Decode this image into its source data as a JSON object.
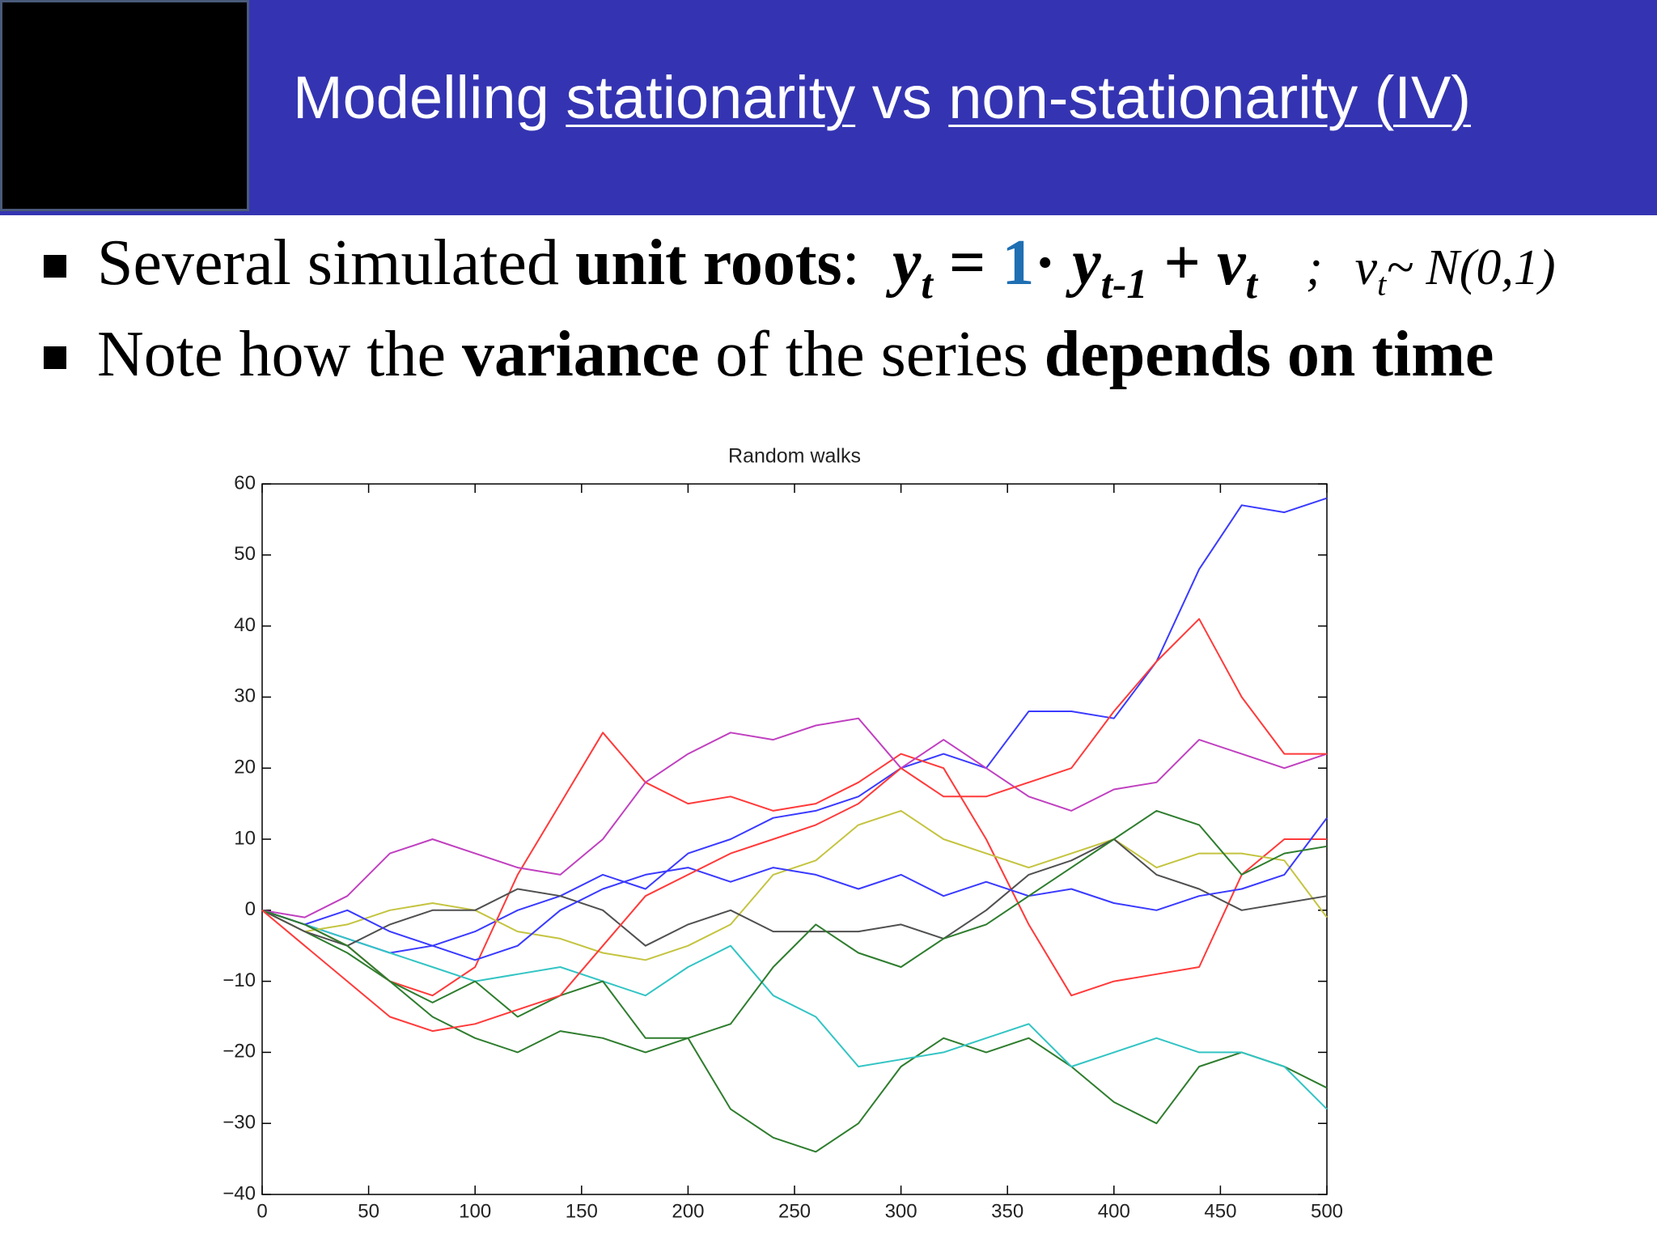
{
  "header": {
    "title": {
      "lead": "Modelling",
      "first": "stationarity",
      "mid": "vs",
      "second": "non-stationarity (IV)"
    }
  },
  "bullets": [
    {
      "segments": [
        {
          "text": "Several simulated"
        },
        {
          "text": "unit roots",
          "bold": true
        },
        {
          "text": ":"
        }
      ],
      "equation": {
        "lhs": "y",
        "lhs_sub": "t",
        "eq": "=",
        "coef": "1",
        "dot": "·",
        "term": "y",
        "term_sub": "t-1",
        "plus": "+",
        "err": "v",
        "err_sub": "t",
        "sep": ";",
        "dist_var": "v",
        "dist_sub": "t",
        "dist": "~ N(0,1)"
      }
    },
    {
      "segments": [
        {
          "text": "Note how the"
        },
        {
          "text": "variance",
          "bold": true
        },
        {
          "text": "of the series"
        },
        {
          "text": "depends on time",
          "bold": true
        }
      ]
    }
  ],
  "chart_data": {
    "type": "line",
    "title": "Random walks",
    "x": [
      0,
      20,
      40,
      60,
      80,
      100,
      120,
      140,
      160,
      180,
      200,
      220,
      240,
      260,
      280,
      300,
      320,
      340,
      360,
      380,
      400,
      420,
      440,
      460,
      480,
      500
    ],
    "xlim": [
      0,
      500
    ],
    "ylim": [
      -40,
      60
    ],
    "xticks": [
      0,
      50,
      100,
      150,
      200,
      250,
      300,
      350,
      400,
      450,
      500
    ],
    "yticks": [
      {
        "value": -40,
        "label": "−40"
      },
      {
        "value": -30,
        "label": "−30"
      },
      {
        "value": -20,
        "label": "−20"
      },
      {
        "value": -10,
        "label": "−10"
      },
      0,
      10,
      20,
      30,
      40,
      50,
      60
    ],
    "grid": false,
    "series": [
      {
        "color": "#3a3aff",
        "values": [
          0,
          -2,
          -4,
          -6,
          -5,
          -3,
          0,
          2,
          5,
          3,
          8,
          10,
          13,
          14,
          16,
          20,
          22,
          20,
          28,
          28,
          27,
          35,
          48,
          57,
          56,
          58
        ]
      },
      {
        "color": "#2e7d2e",
        "values": [
          0,
          -3,
          -6,
          -10,
          -15,
          -18,
          -20,
          -17,
          -18,
          -20,
          -18,
          -28,
          -32,
          -34,
          -30,
          -22,
          -18,
          -20,
          -18,
          -22,
          -27,
          -30,
          -22,
          -20,
          -22,
          -25
        ]
      },
      {
        "color": "#ff3a3a",
        "values": [
          0,
          -2,
          -5,
          -10,
          -12,
          -8,
          5,
          15,
          25,
          18,
          15,
          16,
          14,
          15,
          18,
          22,
          20,
          10,
          -2,
          -12,
          -10,
          -9,
          -8,
          5,
          10,
          10
        ]
      },
      {
        "color": "#33c4c4",
        "values": [
          0,
          -2,
          -4,
          -6,
          -8,
          -10,
          -9,
          -8,
          -10,
          -12,
          -8,
          -5,
          -12,
          -15,
          -22,
          -21,
          -20,
          -18,
          -16,
          -22,
          -20,
          -18,
          -20,
          -20,
          -22,
          -28
        ]
      },
      {
        "color": "#c040c0",
        "values": [
          0,
          -1,
          2,
          8,
          10,
          8,
          6,
          5,
          10,
          18,
          22,
          25,
          24,
          26,
          27,
          20,
          24,
          20,
          16,
          14,
          17,
          18,
          24,
          22,
          20,
          22
        ]
      },
      {
        "color": "#c4c440",
        "values": [
          0,
          -3,
          -2,
          0,
          1,
          0,
          -3,
          -4,
          -6,
          -7,
          -5,
          -2,
          5,
          7,
          12,
          14,
          10,
          8,
          6,
          8,
          10,
          6,
          8,
          8,
          7,
          -1
        ]
      },
      {
        "color": "#505050",
        "values": [
          0,
          -3,
          -5,
          -2,
          0,
          0,
          3,
          2,
          0,
          -5,
          -2,
          0,
          -3,
          -3,
          -3,
          -2,
          -4,
          0,
          5,
          7,
          10,
          5,
          3,
          0,
          1,
          2
        ]
      },
      {
        "color": "#3a3aff",
        "values": [
          0,
          -2,
          0,
          -3,
          -5,
          -7,
          -5,
          0,
          3,
          5,
          6,
          4,
          6,
          5,
          3,
          5,
          2,
          4,
          2,
          3,
          1,
          0,
          2,
          3,
          5,
          13
        ]
      },
      {
        "color": "#2e7d2e",
        "values": [
          0,
          -2,
          -5,
          -10,
          -13,
          -10,
          -15,
          -12,
          -10,
          -18,
          -18,
          -16,
          -8,
          -2,
          -6,
          -8,
          -4,
          -2,
          2,
          6,
          10,
          14,
          12,
          5,
          8,
          9
        ]
      },
      {
        "color": "#ff3a3a",
        "values": [
          0,
          -5,
          -10,
          -15,
          -17,
          -16,
          -14,
          -12,
          -5,
          2,
          5,
          8,
          10,
          12,
          15,
          20,
          16,
          16,
          18,
          20,
          28,
          35,
          41,
          30,
          22,
          22
        ]
      }
    ]
  }
}
